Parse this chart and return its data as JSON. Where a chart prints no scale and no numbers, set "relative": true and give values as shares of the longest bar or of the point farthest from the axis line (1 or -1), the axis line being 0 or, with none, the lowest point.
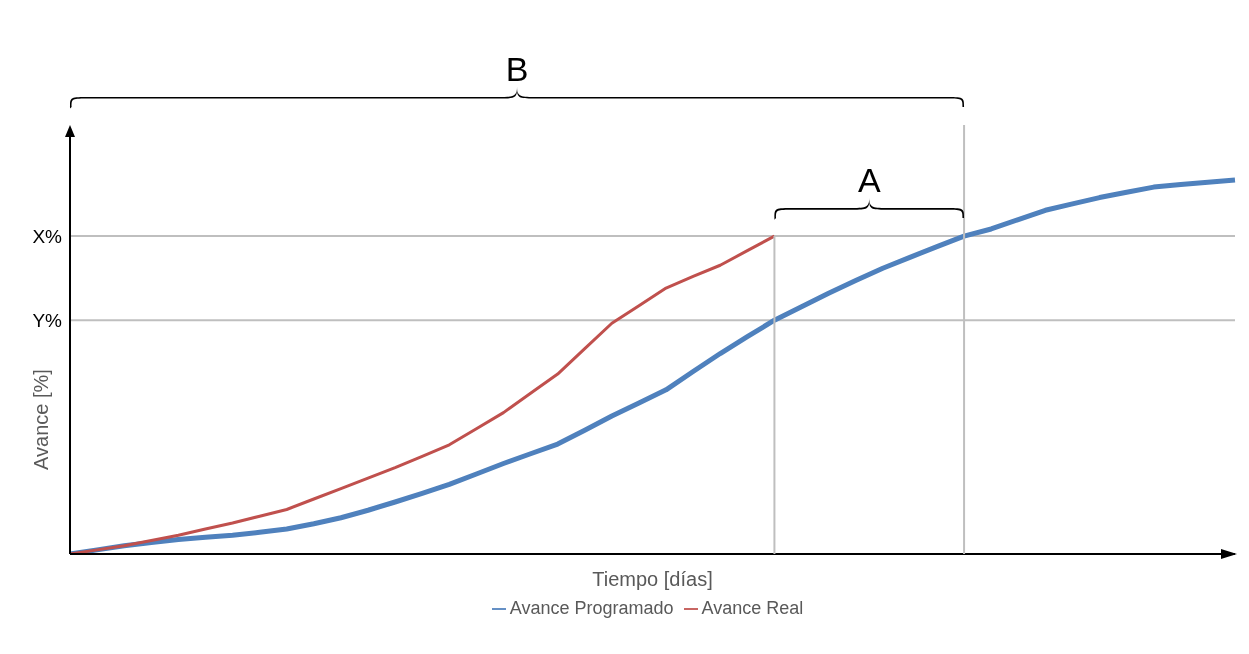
{
  "chart_data": {
    "type": "line",
    "relative": true,
    "xlabel": "Tiempo [días]",
    "ylabel": "Avance [%]",
    "categories": [
      null,
      null,
      null,
      null,
      null,
      null,
      null,
      null,
      null,
      null,
      null,
      null,
      null,
      null,
      null,
      null,
      null,
      null,
      null,
      null,
      null,
      null,
      null,
      null,
      null,
      null,
      null,
      null,
      null,
      null,
      null,
      null,
      null,
      null,
      null,
      null,
      null,
      null,
      null,
      null,
      null,
      null,
      null,
      null
    ],
    "series": [
      {
        "name": "Avance Programado",
        "color": "#4f81bd",
        "values": [
          0,
          0.011,
          0.022,
          0.031,
          0.039,
          0.045,
          0.05,
          0.058,
          0.067,
          0.081,
          0.097,
          0.117,
          0.139,
          0.162,
          0.186,
          0.214,
          0.242,
          0.268,
          0.294,
          0.331,
          0.369,
          0.404,
          0.439,
          0.488,
          0.536,
          0.581,
          0.625,
          0.661,
          0.697,
          0.731,
          0.764,
          0.793,
          0.822,
          0.85,
          0.869,
          0.894,
          0.919,
          0.936,
          0.953,
          0.967,
          0.981,
          0.988,
          0.994,
          1
        ]
      },
      {
        "name": "Avance Real",
        "color": "#c0504d",
        "values": [
          0,
          0.011,
          0.022,
          0.036,
          0.05,
          0.067,
          0.083,
          0.101,
          0.119,
          0.147,
          0.175,
          0.203,
          0.231,
          0.261,
          0.292,
          0.335,
          0.378,
          0.43,
          0.481,
          0.549,
          0.617,
          0.664,
          0.711,
          0.742,
          0.772,
          0.811,
          0.85,
          null,
          null,
          null,
          null,
          null,
          null,
          null,
          null,
          null,
          null,
          null,
          null,
          null,
          null,
          null,
          null,
          null
        ]
      }
    ],
    "ref_lines": [
      {
        "axis": "y",
        "value": 0.85,
        "label": "X%",
        "color": "#bfbfbf"
      },
      {
        "axis": "y",
        "value": 0.625,
        "label": "Y%",
        "color": "#bfbfbf"
      }
    ],
    "annotations": [
      "A",
      "B"
    ],
    "legend": "bottom",
    "grid": false,
    "marker": "none",
    "line_style": "solid"
  }
}
